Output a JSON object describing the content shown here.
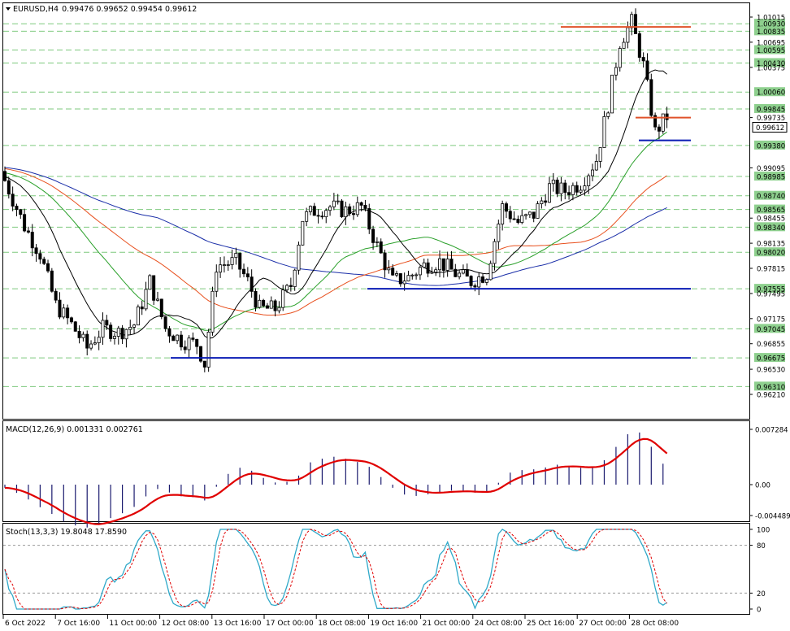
{
  "main_panel": {
    "symbol": "EURUSD,H4",
    "ohlc": "0.99476 0.99652 0.99454 0.99612",
    "price_ticks": [
      "1.01015",
      "1.00695",
      "1.00375",
      "0.99735",
      "0.99095",
      "0.98455",
      "0.98135",
      "0.97815",
      "0.97495",
      "0.97175",
      "0.96855",
      "0.96530",
      "0.96210"
    ],
    "level_badges": [
      "1.00930",
      "1.00835",
      "1.00595",
      "1.00430",
      "1.00060",
      "0.99845",
      "0.99380",
      "0.98985",
      "0.98740",
      "0.98565",
      "0.98340",
      "0.98020",
      "0.97555",
      "0.97045",
      "0.96675",
      "0.96310"
    ],
    "current_price": "0.99612"
  },
  "macd_panel": {
    "title": "MACD(12,26,9) 0.001331 0.002761",
    "ticks": [
      "0.007284",
      "0.00",
      "-0.004489"
    ]
  },
  "stoch_panel": {
    "title": "Stoch(13,3,3) 19.8048 17.8590",
    "ticks": [
      "100",
      "80",
      "20",
      "0"
    ]
  },
  "time_axis": [
    "6 Oct 2022",
    "7 Oct 16:00",
    "11 Oct 00:00",
    "12 Oct 08:00",
    "13 Oct 16:00",
    "17 Oct 00:00",
    "18 Oct 08:00",
    "19 Oct 16:00",
    "21 Oct 00:00",
    "24 Oct 08:00",
    "25 Oct 16:00",
    "27 Oct 00:00",
    "28 Oct 08:00"
  ],
  "chart_data": {
    "type": "candlestick",
    "instrument": "EURUSD",
    "timeframe": "H4",
    "y_range": [
      0.9621,
      1.01015
    ],
    "hlines": [
      {
        "price": 1.0089,
        "color": "#e0522a"
      },
      {
        "price": 0.99735,
        "color": "#e0522a"
      },
      {
        "price": 0.99445,
        "color": "#0a1cb4"
      },
      {
        "price": 0.97555,
        "color": "#0a1cb4"
      },
      {
        "price": 0.96675,
        "color": "#0a1cb4"
      }
    ],
    "bg_grid_color": "#7ec97e",
    "colors": {
      "bull": "#ffffff",
      "bear": "#000000",
      "macd_signal": "#e00000",
      "macd_hist": "#1a1a6e",
      "stoch_main": "#2fa9c9",
      "stoch_signal": "#e00000",
      "ma_blue": "#1a2ea8",
      "ma_orange": "#e8501e",
      "ma_green": "#2aa02a",
      "ma_black": "#000000"
    }
  }
}
